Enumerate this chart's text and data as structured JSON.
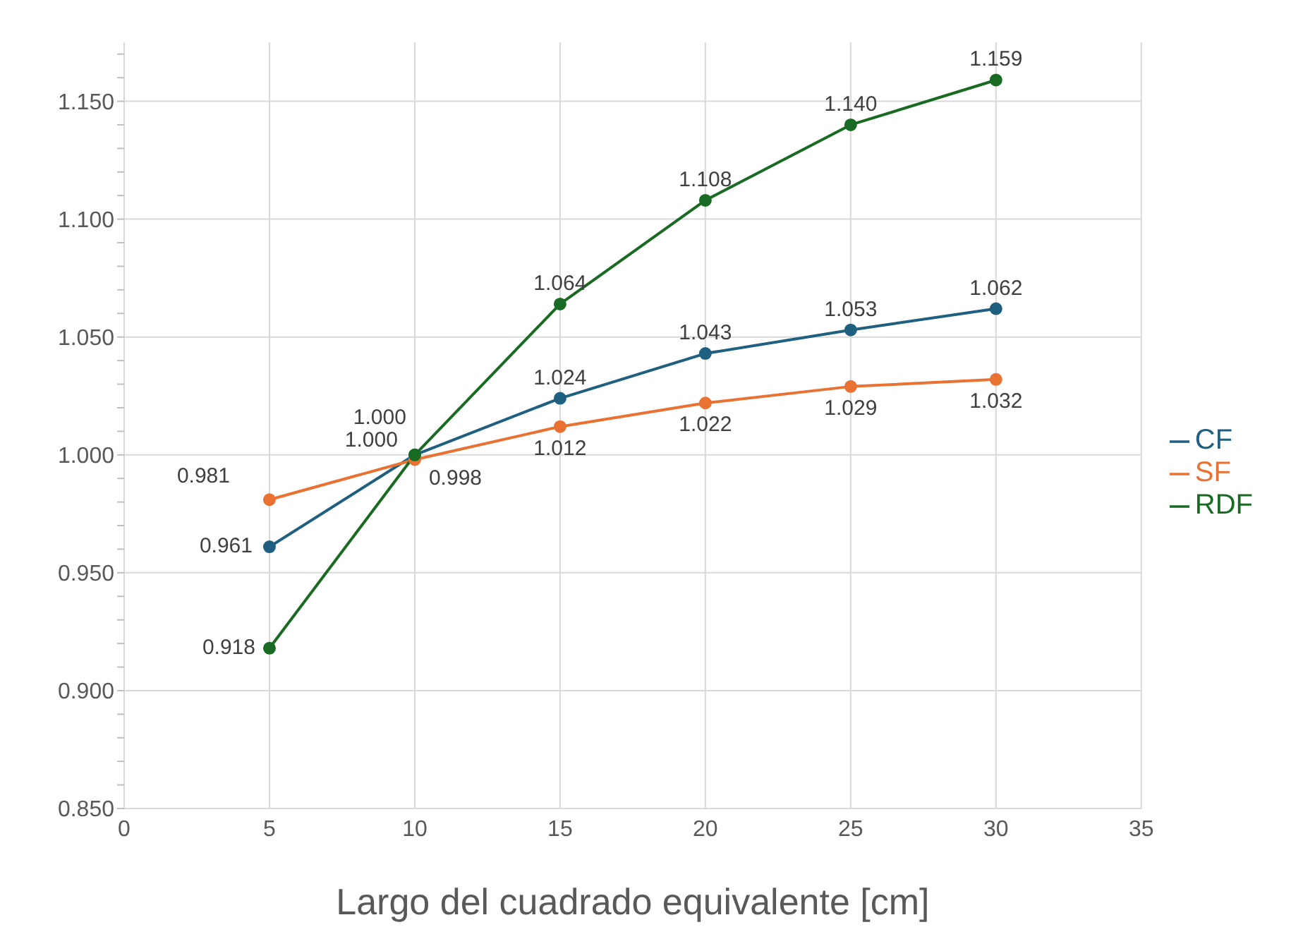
{
  "chart_data": {
    "type": "line",
    "xlabel": "Largo del cuadrado equivalente [cm]",
    "x": [
      5,
      10,
      15,
      20,
      25,
      30
    ],
    "xlim": [
      0,
      35
    ],
    "xticks": [
      0,
      5,
      10,
      15,
      20,
      25,
      30,
      35
    ],
    "ylim": [
      0.85,
      1.175
    ],
    "yticks": [
      {
        "value": 0.85,
        "label": "0.850"
      },
      {
        "value": 0.86,
        "label": null
      },
      {
        "value": 0.87,
        "label": null
      },
      {
        "value": 0.88,
        "label": null
      },
      {
        "value": 0.89,
        "label": null
      },
      {
        "value": 0.9,
        "label": "0.900"
      },
      {
        "value": 0.91,
        "label": null
      },
      {
        "value": 0.92,
        "label": null
      },
      {
        "value": 0.93,
        "label": null
      },
      {
        "value": 0.94,
        "label": null
      },
      {
        "value": 0.95,
        "label": "0.950"
      },
      {
        "value": 0.96,
        "label": null
      },
      {
        "value": 0.97,
        "label": null
      },
      {
        "value": 0.98,
        "label": null
      },
      {
        "value": 0.99,
        "label": null
      },
      {
        "value": 1.0,
        "label": "1.000"
      },
      {
        "value": 1.01,
        "label": null
      },
      {
        "value": 1.02,
        "label": null
      },
      {
        "value": 1.03,
        "label": null
      },
      {
        "value": 1.04,
        "label": null
      },
      {
        "value": 1.05,
        "label": "1.050"
      },
      {
        "value": 1.06,
        "label": null
      },
      {
        "value": 1.07,
        "label": null
      },
      {
        "value": 1.08,
        "label": null
      },
      {
        "value": 1.09,
        "label": null
      },
      {
        "value": 1.1,
        "label": "1.100"
      },
      {
        "value": 1.11,
        "label": null
      },
      {
        "value": 1.12,
        "label": null
      },
      {
        "value": 1.13,
        "label": null
      },
      {
        "value": 1.14,
        "label": null
      },
      {
        "value": 1.15,
        "label": "1.150"
      },
      {
        "value": 1.16,
        "label": null
      },
      {
        "value": 1.17,
        "label": null
      }
    ],
    "grid": true,
    "legend": "right",
    "marker": "circle",
    "line_style": "solid",
    "series": [
      {
        "name": "CF",
        "color": "#1f5f7f",
        "values": [
          0.961,
          1.0,
          1.024,
          1.043,
          1.053,
          1.062
        ],
        "value_labels": [
          "0.961",
          "1.000",
          "1.024",
          "1.043",
          "1.053",
          "1.062"
        ]
      },
      {
        "name": "SF",
        "color": "#e97132",
        "values": [
          0.981,
          0.998,
          1.012,
          1.022,
          1.029,
          1.032
        ],
        "value_labels": [
          "0.981",
          "0.998",
          "1.012",
          "1.022",
          "1.029",
          "1.032"
        ]
      },
      {
        "name": "RDF",
        "color": "#196b24",
        "values": [
          0.918,
          1.0,
          1.064,
          1.108,
          1.14,
          1.159
        ],
        "value_labels": [
          "0.918",
          "1.000",
          "1.064",
          "1.108",
          "1.140",
          "1.159"
        ]
      }
    ]
  }
}
